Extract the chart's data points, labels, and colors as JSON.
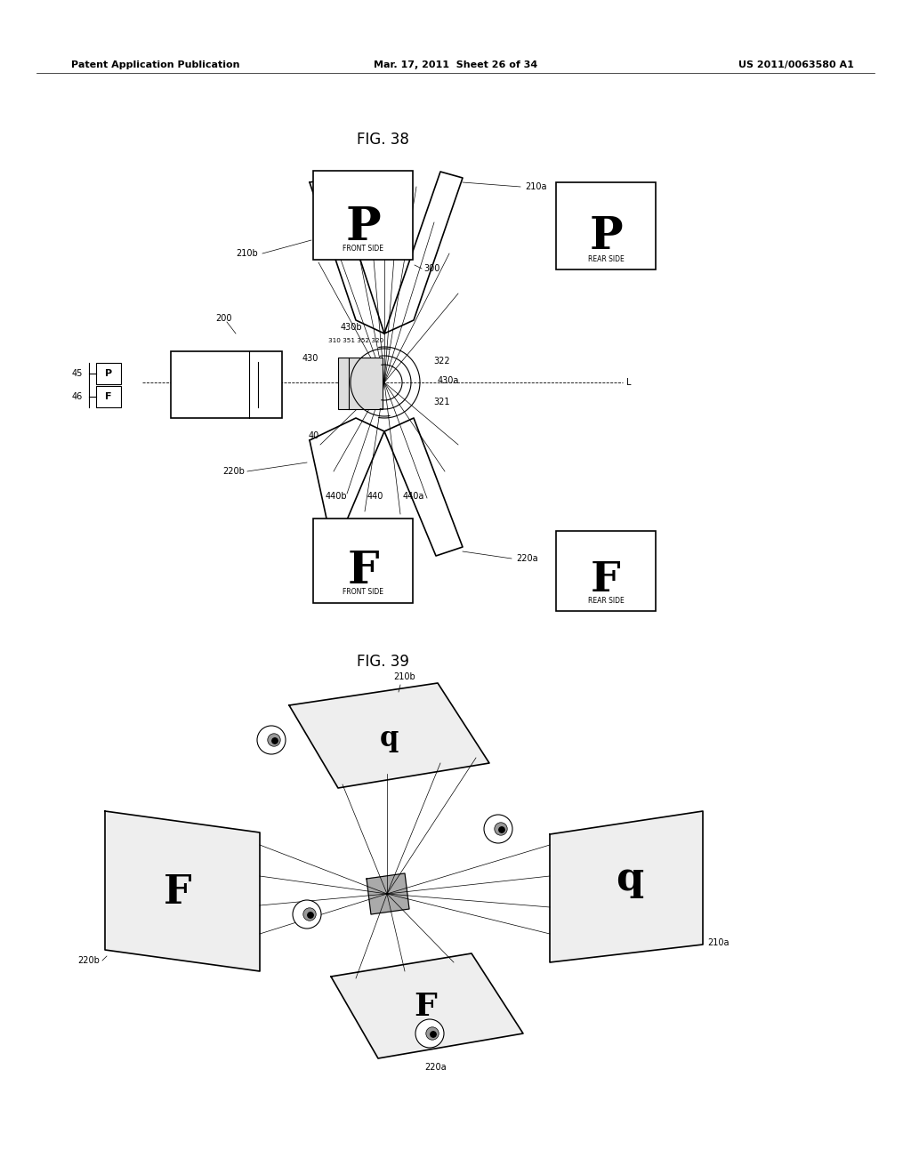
{
  "bg_color": "#ffffff",
  "header_left": "Patent Application Publication",
  "header_mid": "Mar. 17, 2011  Sheet 26 of 34",
  "header_right": "US 2011/0063580 A1",
  "fig38_title": "FIG. 38",
  "fig39_title": "FIG. 39"
}
